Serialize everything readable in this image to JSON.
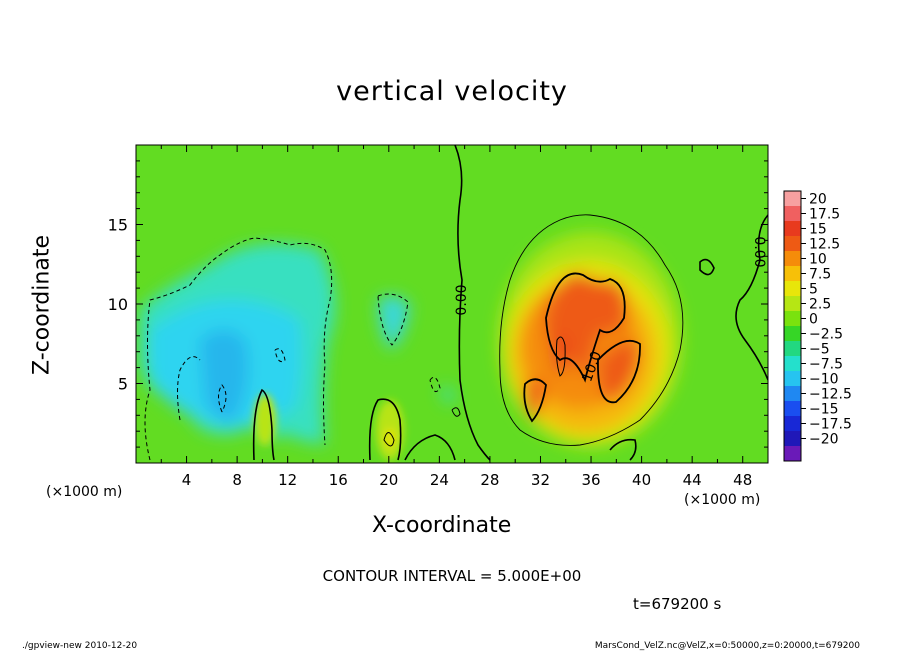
{
  "chart_data": {
    "type": "heatmap",
    "title": "vertical velocity",
    "xlabel": "X-coordinate",
    "ylabel": "Z-coordinate",
    "x_unit": "(×1000 m)",
    "z_unit": "(×1000 m)",
    "xlim": [
      0,
      50
    ],
    "ylim": [
      0,
      20
    ],
    "x_ticks": [
      4,
      8,
      12,
      16,
      20,
      24,
      28,
      32,
      36,
      40,
      44,
      48
    ],
    "y_ticks": [
      5,
      10,
      15
    ],
    "colorbar": {
      "levels": [
        "20",
        "17.5",
        "15",
        "12.5",
        "10",
        "7.5",
        "5",
        "2.5",
        "0",
        "-2.5",
        "-5",
        "-7.5",
        "-10",
        "-12.5",
        "-15",
        "-17.5",
        "-20"
      ],
      "colors": [
        "#f7a0a0",
        "#f06060",
        "#e83a1e",
        "#ee5a14",
        "#f58c0a",
        "#f7c008",
        "#e8e60a",
        "#b6e614",
        "#7ae20e",
        "#36d626",
        "#22d880",
        "#24e0cc",
        "#26c4f0",
        "#1f88f2",
        "#1a4ef0",
        "#1828d6",
        "#2018b8",
        "#6a1ab8"
      ]
    },
    "contour_labels": [
      "0.00",
      "10.0",
      "0.00"
    ],
    "contour_interval": "CONTOUR INTERVAL = 5.000E+00",
    "time": "t=679200 s"
  },
  "footer": {
    "left": "./gpview-new  2010-12-20",
    "right": "MarsCond_VelZ.nc@VelZ,x=0:50000,z=0:20000,t=679200"
  }
}
